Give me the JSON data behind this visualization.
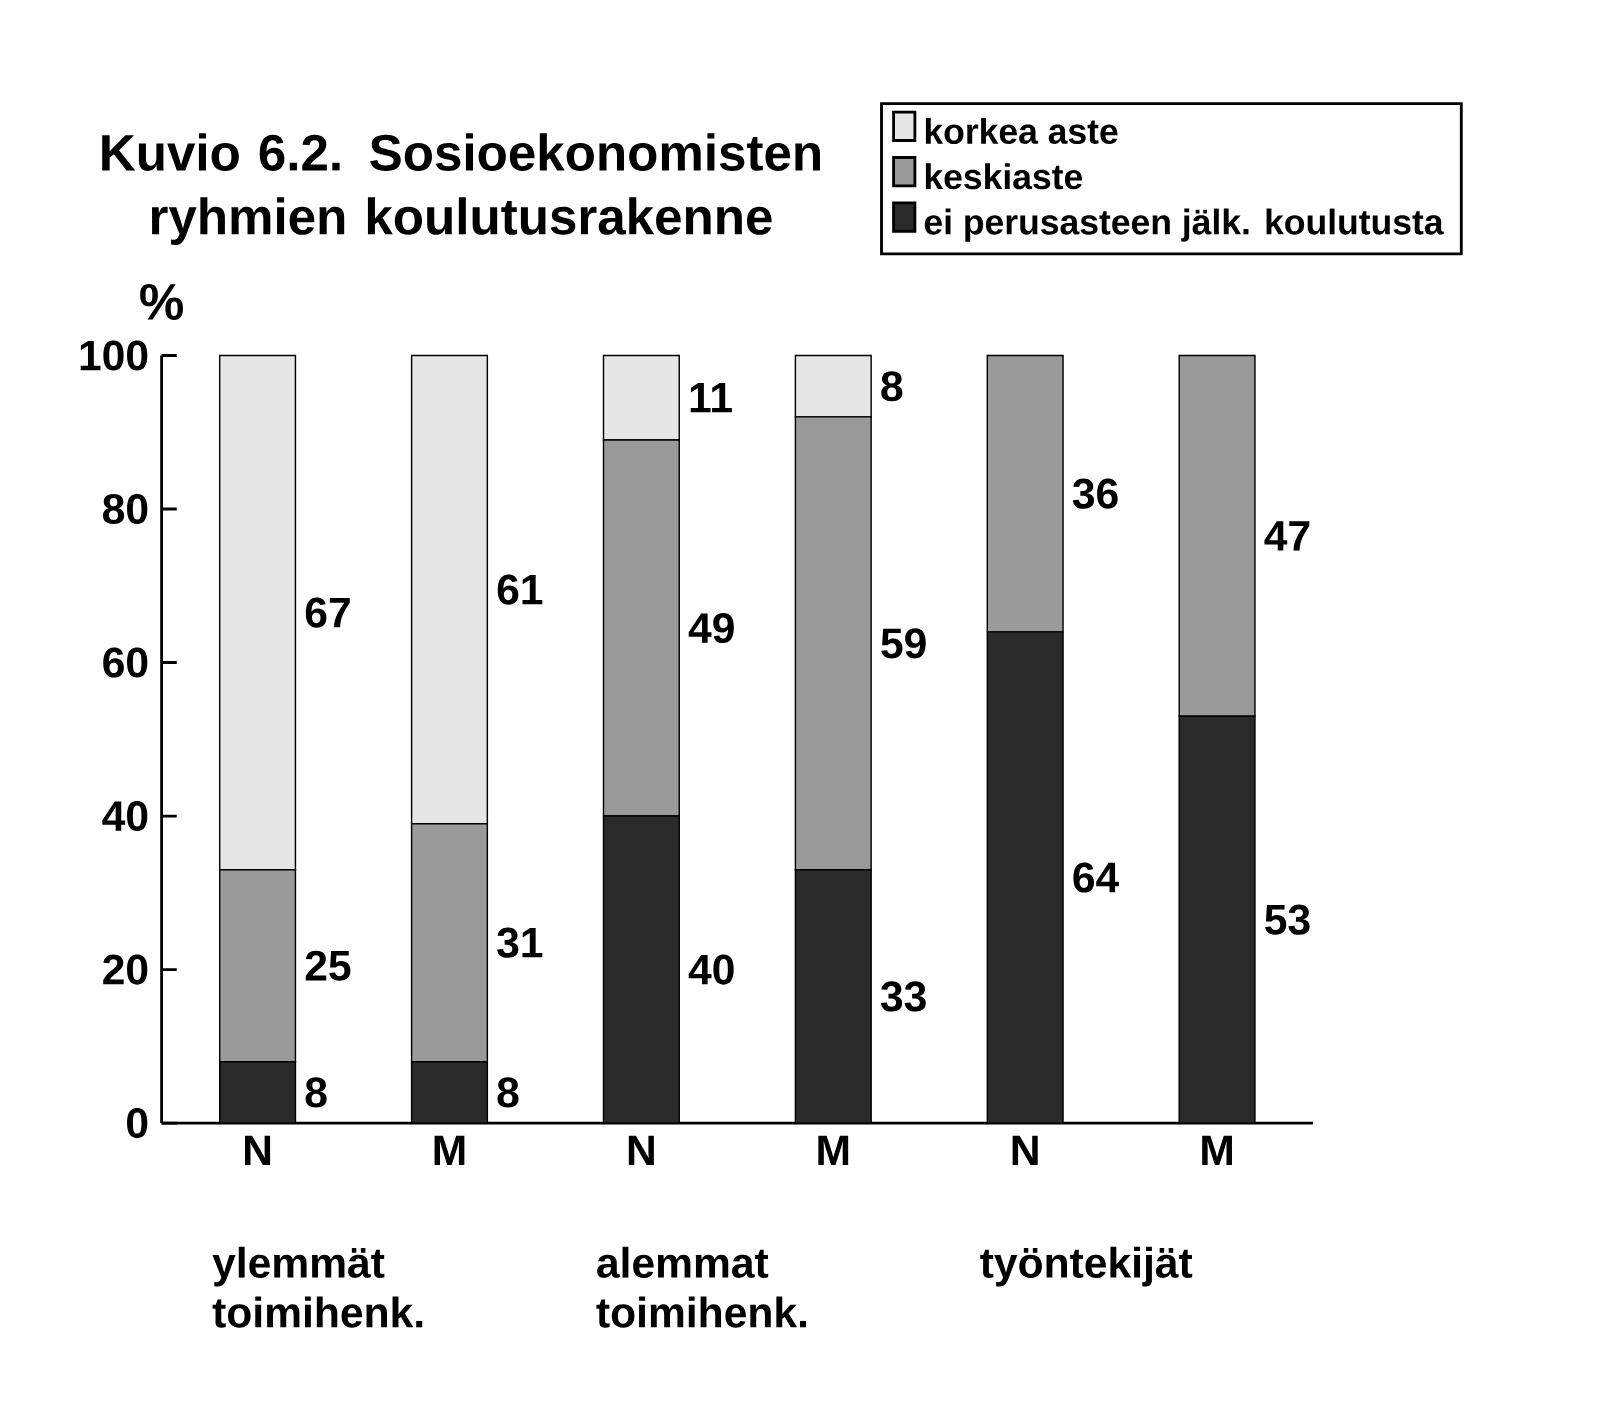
{
  "chart_data": {
    "type": "bar",
    "stacked": true,
    "title": "Kuvio 6.2. Sosioekonomisten ryhmien koulutusrakenne",
    "ylabel": "%",
    "categories": [
      "N",
      "M",
      "N",
      "M",
      "N",
      "M"
    ],
    "series": [
      {
        "name": "ei perusasteen jälk. koulutusta",
        "color": "#2a2a2a",
        "values": [
          8,
          8,
          40,
          33,
          64,
          53
        ],
        "value_labels": [
          "8",
          "8",
          "40",
          "33",
          "64",
          "53"
        ]
      },
      {
        "name": "keskiaste",
        "color": "#9a9a9a",
        "values": [
          25,
          31,
          49,
          59,
          36,
          47
        ],
        "value_labels": [
          "25",
          "31",
          "49",
          "59",
          "36",
          "47"
        ]
      },
      {
        "name": "korkea aste",
        "color": "#e6e6e6",
        "values": [
          67,
          61,
          11,
          8,
          0,
          0
        ],
        "value_labels": [
          "67",
          "61",
          "11",
          "8",
          null,
          null
        ]
      }
    ],
    "annotations": [
      "ylemmät toimihenk.",
      "alemmat toimihenk.",
      "työntekijät"
    ],
    "ylim": [
      0,
      100
    ],
    "yticks": [
      0,
      20,
      40,
      60,
      80,
      100
    ],
    "legend": "top right",
    "grid": false
  }
}
